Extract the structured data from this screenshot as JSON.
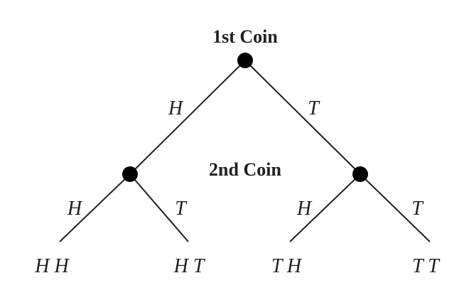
{
  "diagram": {
    "levels": {
      "first": "1st Coin",
      "second": "2nd Coin"
    },
    "branches": {
      "root_left": "H",
      "root_right": "T",
      "left_left": "H",
      "left_right": "T",
      "right_left": "H",
      "right_right": "T"
    },
    "outcomes": [
      "H H",
      "H T",
      "T H",
      "T T"
    ]
  }
}
